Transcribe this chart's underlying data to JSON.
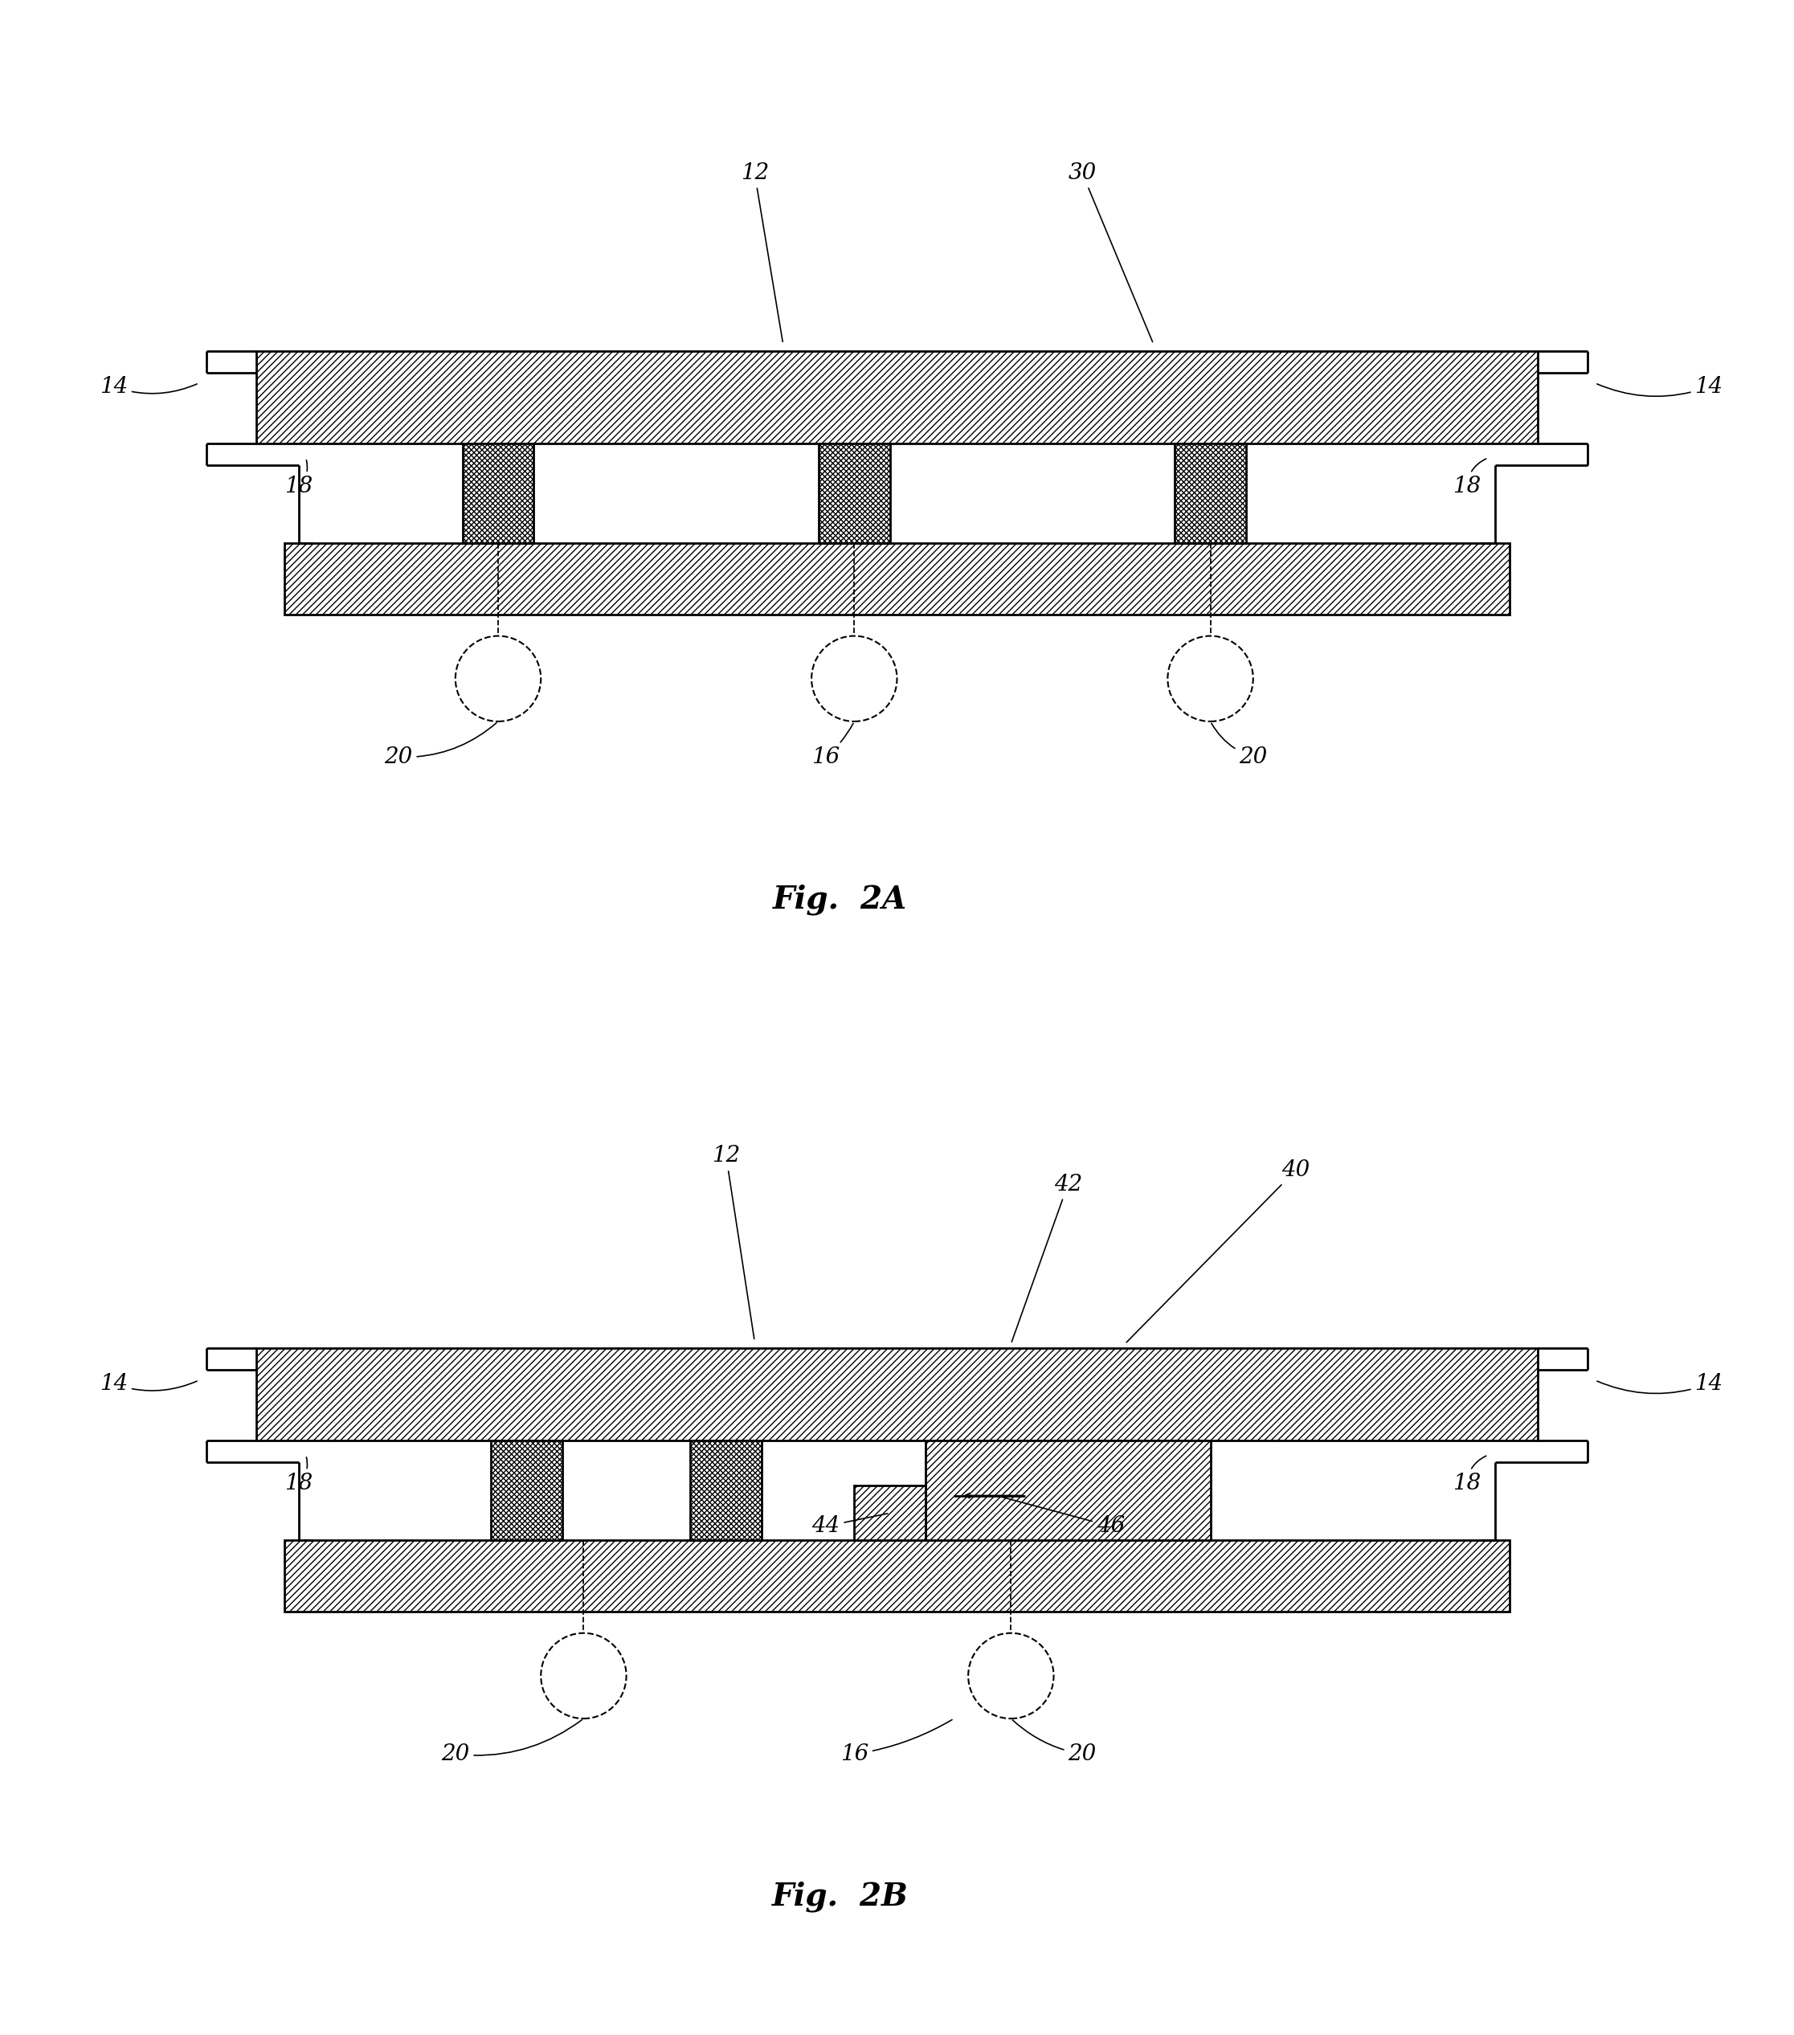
{
  "bg_color": "#ffffff",
  "fig_a_title": "Fig.  2A",
  "fig_b_title": "Fig.  2B",
  "lw_main": 2.0,
  "lw_thin": 1.3,
  "hatch_substrate": "////",
  "hatch_pillar": "xxxx",
  "hatch_die": "////",
  "font_size_label": 20,
  "font_size_caption": 28
}
